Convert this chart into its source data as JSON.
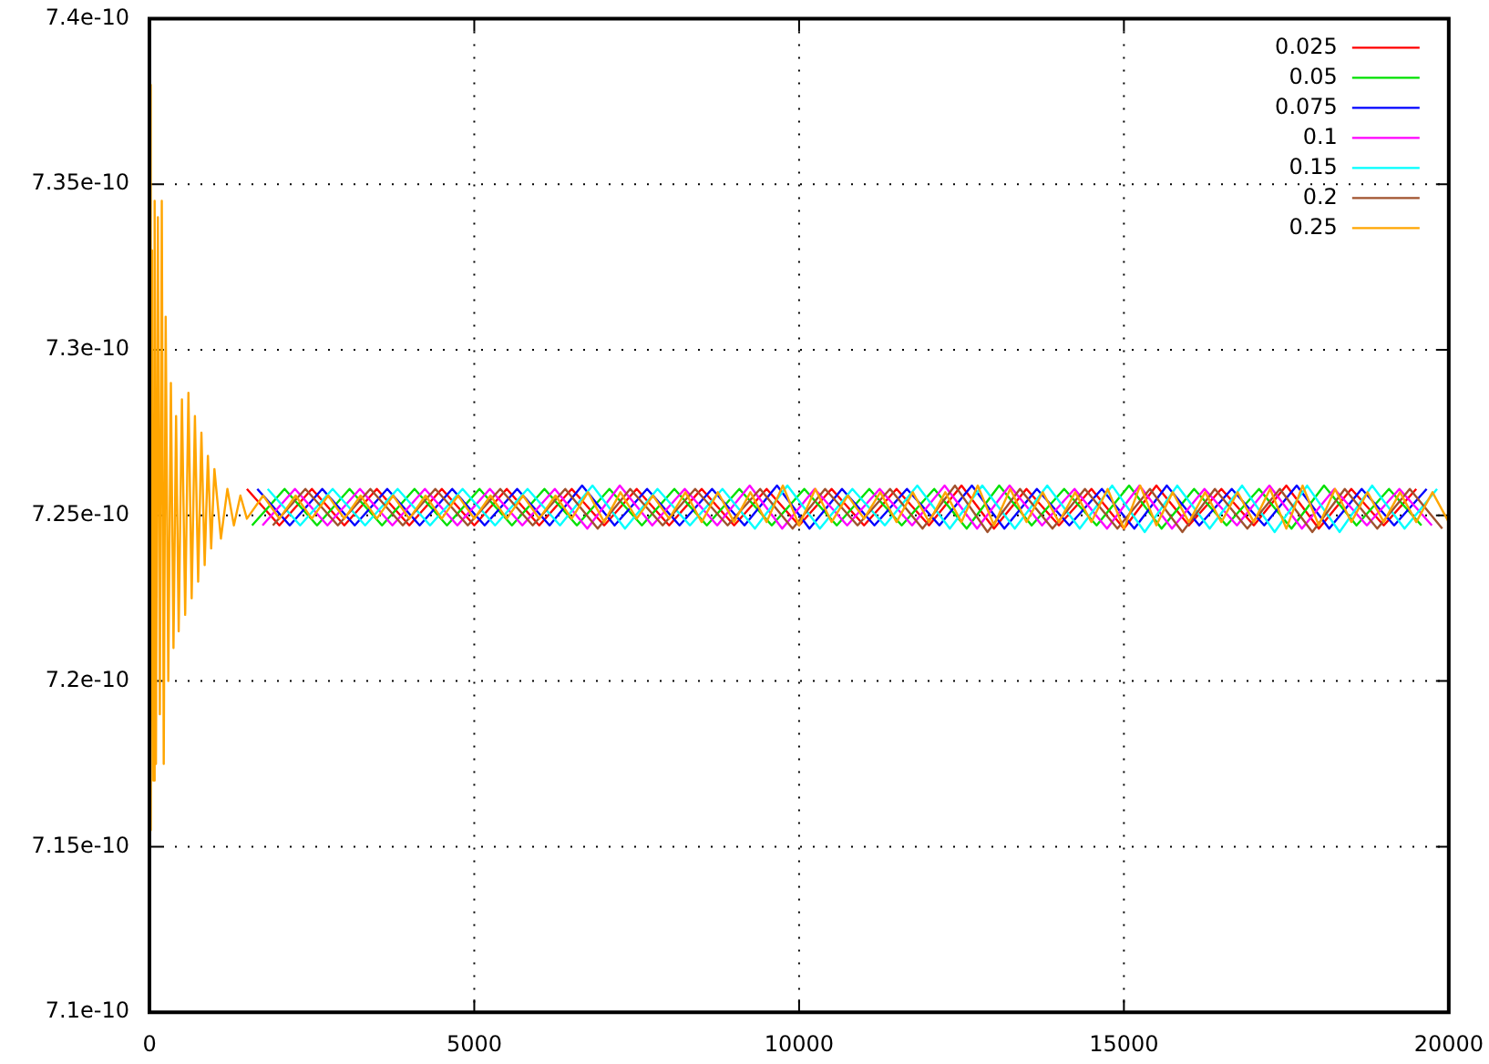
{
  "chart_data": {
    "type": "line",
    "xlim": [
      0,
      20000
    ],
    "ylim": [
      7.1e-10,
      7.4e-10
    ],
    "xticks": [
      0,
      5000,
      10000,
      15000,
      20000
    ],
    "yticks": [
      {
        "value": 7.1e-10,
        "label": "7.1e-10"
      },
      {
        "value": 7.15e-10,
        "label": "7.15e-10"
      },
      {
        "value": 7.2e-10,
        "label": "7.2e-10"
      },
      {
        "value": 7.25e-10,
        "label": "7.25e-10"
      },
      {
        "value": 7.3e-10,
        "label": "7.3e-10"
      },
      {
        "value": 7.35e-10,
        "label": "7.35e-10"
      },
      {
        "value": 7.4e-10,
        "label": "7.4e-10"
      }
    ],
    "grid": true,
    "legend": "top right",
    "marker": "none",
    "line_style": "solid",
    "series": [
      {
        "name": "0.025",
        "color": "#ff0000",
        "x": [
          1500,
          2000,
          2500,
          3000,
          3500,
          4000,
          4500,
          5000,
          5500,
          6000,
          6500,
          7000,
          7500,
          8000,
          8500,
          9000,
          9500,
          10000,
          10500,
          11000,
          11500,
          12000,
          12500,
          13000,
          13500,
          14000,
          14500,
          15000,
          15500,
          16000,
          16500,
          17000,
          17500,
          18000,
          18500,
          19000,
          19500
        ],
        "values": [
          7.258e-10,
          7.247e-10,
          7.258e-10,
          7.247e-10,
          7.258e-10,
          7.247e-10,
          7.258e-10,
          7.247e-10,
          7.258e-10,
          7.247e-10,
          7.258e-10,
          7.247e-10,
          7.258e-10,
          7.247e-10,
          7.258e-10,
          7.247e-10,
          7.258e-10,
          7.247e-10,
          7.258e-10,
          7.247e-10,
          7.258e-10,
          7.247e-10,
          7.259e-10,
          7.246e-10,
          7.258e-10,
          7.247e-10,
          7.258e-10,
          7.246e-10,
          7.259e-10,
          7.247e-10,
          7.258e-10,
          7.247e-10,
          7.259e-10,
          7.246e-10,
          7.258e-10,
          7.247e-10,
          7.258e-10
        ]
      },
      {
        "name": "0.05",
        "color": "#00e000",
        "x": [
          1580,
          2080,
          2580,
          3080,
          3580,
          4080,
          4580,
          5080,
          5580,
          6080,
          6580,
          7080,
          7580,
          8080,
          8580,
          9080,
          9580,
          10080,
          10580,
          11080,
          11580,
          12080,
          12580,
          13080,
          13580,
          14080,
          14580,
          15080,
          15580,
          16080,
          16580,
          17080,
          17580,
          18080,
          18580,
          19080,
          19580
        ],
        "values": [
          7.247e-10,
          7.258e-10,
          7.247e-10,
          7.258e-10,
          7.247e-10,
          7.258e-10,
          7.247e-10,
          7.258e-10,
          7.247e-10,
          7.258e-10,
          7.247e-10,
          7.258e-10,
          7.247e-10,
          7.258e-10,
          7.247e-10,
          7.258e-10,
          7.247e-10,
          7.258e-10,
          7.247e-10,
          7.258e-10,
          7.247e-10,
          7.258e-10,
          7.246e-10,
          7.259e-10,
          7.247e-10,
          7.258e-10,
          7.247e-10,
          7.259e-10,
          7.246e-10,
          7.258e-10,
          7.247e-10,
          7.258e-10,
          7.246e-10,
          7.259e-10,
          7.247e-10,
          7.258e-10,
          7.247e-10
        ]
      },
      {
        "name": "0.075",
        "color": "#0000ff",
        "x": [
          1660,
          2160,
          2660,
          3160,
          3660,
          4160,
          4660,
          5160,
          5660,
          6160,
          6660,
          7160,
          7660,
          8160,
          8660,
          9160,
          9660,
          10160,
          10660,
          11160,
          11660,
          12160,
          12660,
          13160,
          13660,
          14160,
          14660,
          15160,
          15660,
          16160,
          16660,
          17160,
          17660,
          18160,
          18660,
          19160,
          19660
        ],
        "values": [
          7.258e-10,
          7.247e-10,
          7.258e-10,
          7.247e-10,
          7.258e-10,
          7.247e-10,
          7.258e-10,
          7.247e-10,
          7.258e-10,
          7.247e-10,
          7.259e-10,
          7.247e-10,
          7.258e-10,
          7.247e-10,
          7.258e-10,
          7.247e-10,
          7.259e-10,
          7.246e-10,
          7.258e-10,
          7.247e-10,
          7.258e-10,
          7.247e-10,
          7.259e-10,
          7.246e-10,
          7.258e-10,
          7.247e-10,
          7.258e-10,
          7.246e-10,
          7.259e-10,
          7.247e-10,
          7.258e-10,
          7.247e-10,
          7.259e-10,
          7.246e-10,
          7.258e-10,
          7.247e-10,
          7.258e-10
        ]
      },
      {
        "name": "0.1",
        "color": "#ff00ff",
        "x": [
          1740,
          2240,
          2740,
          3240,
          3740,
          4240,
          4740,
          5240,
          5740,
          6240,
          6740,
          7240,
          7740,
          8240,
          8740,
          9240,
          9740,
          10240,
          10740,
          11240,
          11740,
          12240,
          12740,
          13240,
          13740,
          14240,
          14740,
          15240,
          15740,
          16240,
          16740,
          17240,
          17740,
          18240,
          18740,
          19240,
          19740
        ],
        "values": [
          7.247e-10,
          7.258e-10,
          7.247e-10,
          7.258e-10,
          7.247e-10,
          7.258e-10,
          7.247e-10,
          7.258e-10,
          7.247e-10,
          7.258e-10,
          7.246e-10,
          7.259e-10,
          7.247e-10,
          7.258e-10,
          7.247e-10,
          7.259e-10,
          7.246e-10,
          7.258e-10,
          7.247e-10,
          7.258e-10,
          7.247e-10,
          7.259e-10,
          7.246e-10,
          7.259e-10,
          7.247e-10,
          7.258e-10,
          7.246e-10,
          7.259e-10,
          7.246e-10,
          7.258e-10,
          7.247e-10,
          7.259e-10,
          7.246e-10,
          7.258e-10,
          7.247e-10,
          7.258e-10,
          7.247e-10
        ]
      },
      {
        "name": "0.15",
        "color": "#00ffff",
        "x": [
          1820,
          2320,
          2820,
          3320,
          3820,
          4320,
          4820,
          5320,
          5820,
          6320,
          6820,
          7320,
          7820,
          8320,
          8820,
          9320,
          9820,
          10320,
          10820,
          11320,
          11820,
          12320,
          12820,
          13320,
          13820,
          14320,
          14820,
          15320,
          15820,
          16320,
          16820,
          17320,
          17820,
          18320,
          18820,
          19320,
          19820
        ],
        "values": [
          7.258e-10,
          7.247e-10,
          7.258e-10,
          7.247e-10,
          7.258e-10,
          7.247e-10,
          7.258e-10,
          7.247e-10,
          7.258e-10,
          7.247e-10,
          7.259e-10,
          7.246e-10,
          7.258e-10,
          7.247e-10,
          7.258e-10,
          7.246e-10,
          7.259e-10,
          7.246e-10,
          7.258e-10,
          7.247e-10,
          7.259e-10,
          7.246e-10,
          7.259e-10,
          7.246e-10,
          7.259e-10,
          7.246e-10,
          7.259e-10,
          7.245e-10,
          7.259e-10,
          7.246e-10,
          7.259e-10,
          7.245e-10,
          7.259e-10,
          7.245e-10,
          7.259e-10,
          7.246e-10,
          7.258e-10
        ]
      },
      {
        "name": "0.2",
        "color": "#a0522d",
        "x": [
          1900,
          2400,
          2900,
          3400,
          3900,
          4400,
          4900,
          5400,
          5900,
          6400,
          6900,
          7400,
          7900,
          8400,
          8900,
          9400,
          9900,
          10400,
          10900,
          11400,
          11900,
          12400,
          12900,
          13400,
          13900,
          14400,
          14900,
          15400,
          15900,
          16400,
          16900,
          17400,
          17900,
          18400,
          18900,
          19400,
          19900
        ],
        "values": [
          7.247e-10,
          7.258e-10,
          7.247e-10,
          7.258e-10,
          7.247e-10,
          7.258e-10,
          7.247e-10,
          7.258e-10,
          7.247e-10,
          7.258e-10,
          7.246e-10,
          7.258e-10,
          7.247e-10,
          7.258e-10,
          7.247e-10,
          7.258e-10,
          7.246e-10,
          7.258e-10,
          7.247e-10,
          7.258e-10,
          7.246e-10,
          7.259e-10,
          7.245e-10,
          7.258e-10,
          7.246e-10,
          7.258e-10,
          7.246e-10,
          7.258e-10,
          7.245e-10,
          7.258e-10,
          7.246e-10,
          7.258e-10,
          7.245e-10,
          7.258e-10,
          7.246e-10,
          7.258e-10,
          7.246e-10
        ]
      },
      {
        "name": "0.25",
        "color": "#ffa500",
        "x": [
          0,
          20,
          40,
          60,
          80,
          100,
          130,
          160,
          190,
          220,
          250,
          290,
          330,
          370,
          410,
          450,
          500,
          550,
          600,
          650,
          700,
          750,
          800,
          850,
          900,
          950,
          1000,
          1100,
          1200,
          1300,
          1400,
          1500,
          1750,
          2000,
          2250,
          2500,
          2750,
          3000,
          3250,
          3500,
          3750,
          4000,
          4250,
          4500,
          4750,
          5000,
          5250,
          5500,
          5750,
          6000,
          6250,
          6500,
          6750,
          7000,
          7250,
          7500,
          7750,
          8000,
          8250,
          8500,
          8750,
          9000,
          9250,
          9500,
          9750,
          10000,
          10250,
          10500,
          10750,
          11000,
          11250,
          11500,
          11750,
          12000,
          12250,
          12500,
          12750,
          13000,
          13250,
          13500,
          13750,
          14000,
          14250,
          14500,
          14750,
          15000,
          15250,
          15500,
          15750,
          16000,
          16250,
          16500,
          16750,
          17000,
          17250,
          17500,
          17750,
          18000,
          18250,
          18500,
          18750,
          19000,
          19250,
          19500,
          19750,
          20000
        ],
        "values": [
          7.38e-10,
          7.155e-10,
          7.33e-10,
          7.17e-10,
          7.345e-10,
          7.175e-10,
          7.34e-10,
          7.19e-10,
          7.345e-10,
          7.175e-10,
          7.31e-10,
          7.2e-10,
          7.29e-10,
          7.21e-10,
          7.28e-10,
          7.215e-10,
          7.285e-10,
          7.22e-10,
          7.287e-10,
          7.225e-10,
          7.28e-10,
          7.23e-10,
          7.275e-10,
          7.235e-10,
          7.268e-10,
          7.24e-10,
          7.264e-10,
          7.243e-10,
          7.258e-10,
          7.247e-10,
          7.256e-10,
          7.249e-10,
          7.256e-10,
          7.249e-10,
          7.256e-10,
          7.249e-10,
          7.256e-10,
          7.249e-10,
          7.256e-10,
          7.249e-10,
          7.256e-10,
          7.249e-10,
          7.256e-10,
          7.249e-10,
          7.256e-10,
          7.249e-10,
          7.256e-10,
          7.249e-10,
          7.256e-10,
          7.249e-10,
          7.256e-10,
          7.249e-10,
          7.257e-10,
          7.248e-10,
          7.257e-10,
          7.249e-10,
          7.256e-10,
          7.249e-10,
          7.257e-10,
          7.248e-10,
          7.257e-10,
          7.248e-10,
          7.257e-10,
          7.248e-10,
          7.259e-10,
          7.247e-10,
          7.258e-10,
          7.248e-10,
          7.256e-10,
          7.249e-10,
          7.257e-10,
          7.248e-10,
          7.257e-10,
          7.248e-10,
          7.257e-10,
          7.248e-10,
          7.259e-10,
          7.247e-10,
          7.258e-10,
          7.248e-10,
          7.257e-10,
          7.248e-10,
          7.257e-10,
          7.248e-10,
          7.258e-10,
          7.246e-10,
          7.259e-10,
          7.247e-10,
          7.257e-10,
          7.248e-10,
          7.257e-10,
          7.248e-10,
          7.257e-10,
          7.248e-10,
          7.258e-10,
          7.246e-10,
          7.259e-10,
          7.247e-10,
          7.258e-10,
          7.248e-10,
          7.257e-10,
          7.248e-10,
          7.257e-10,
          7.248e-10,
          7.257e-10,
          7.248e-10
        ]
      }
    ]
  }
}
